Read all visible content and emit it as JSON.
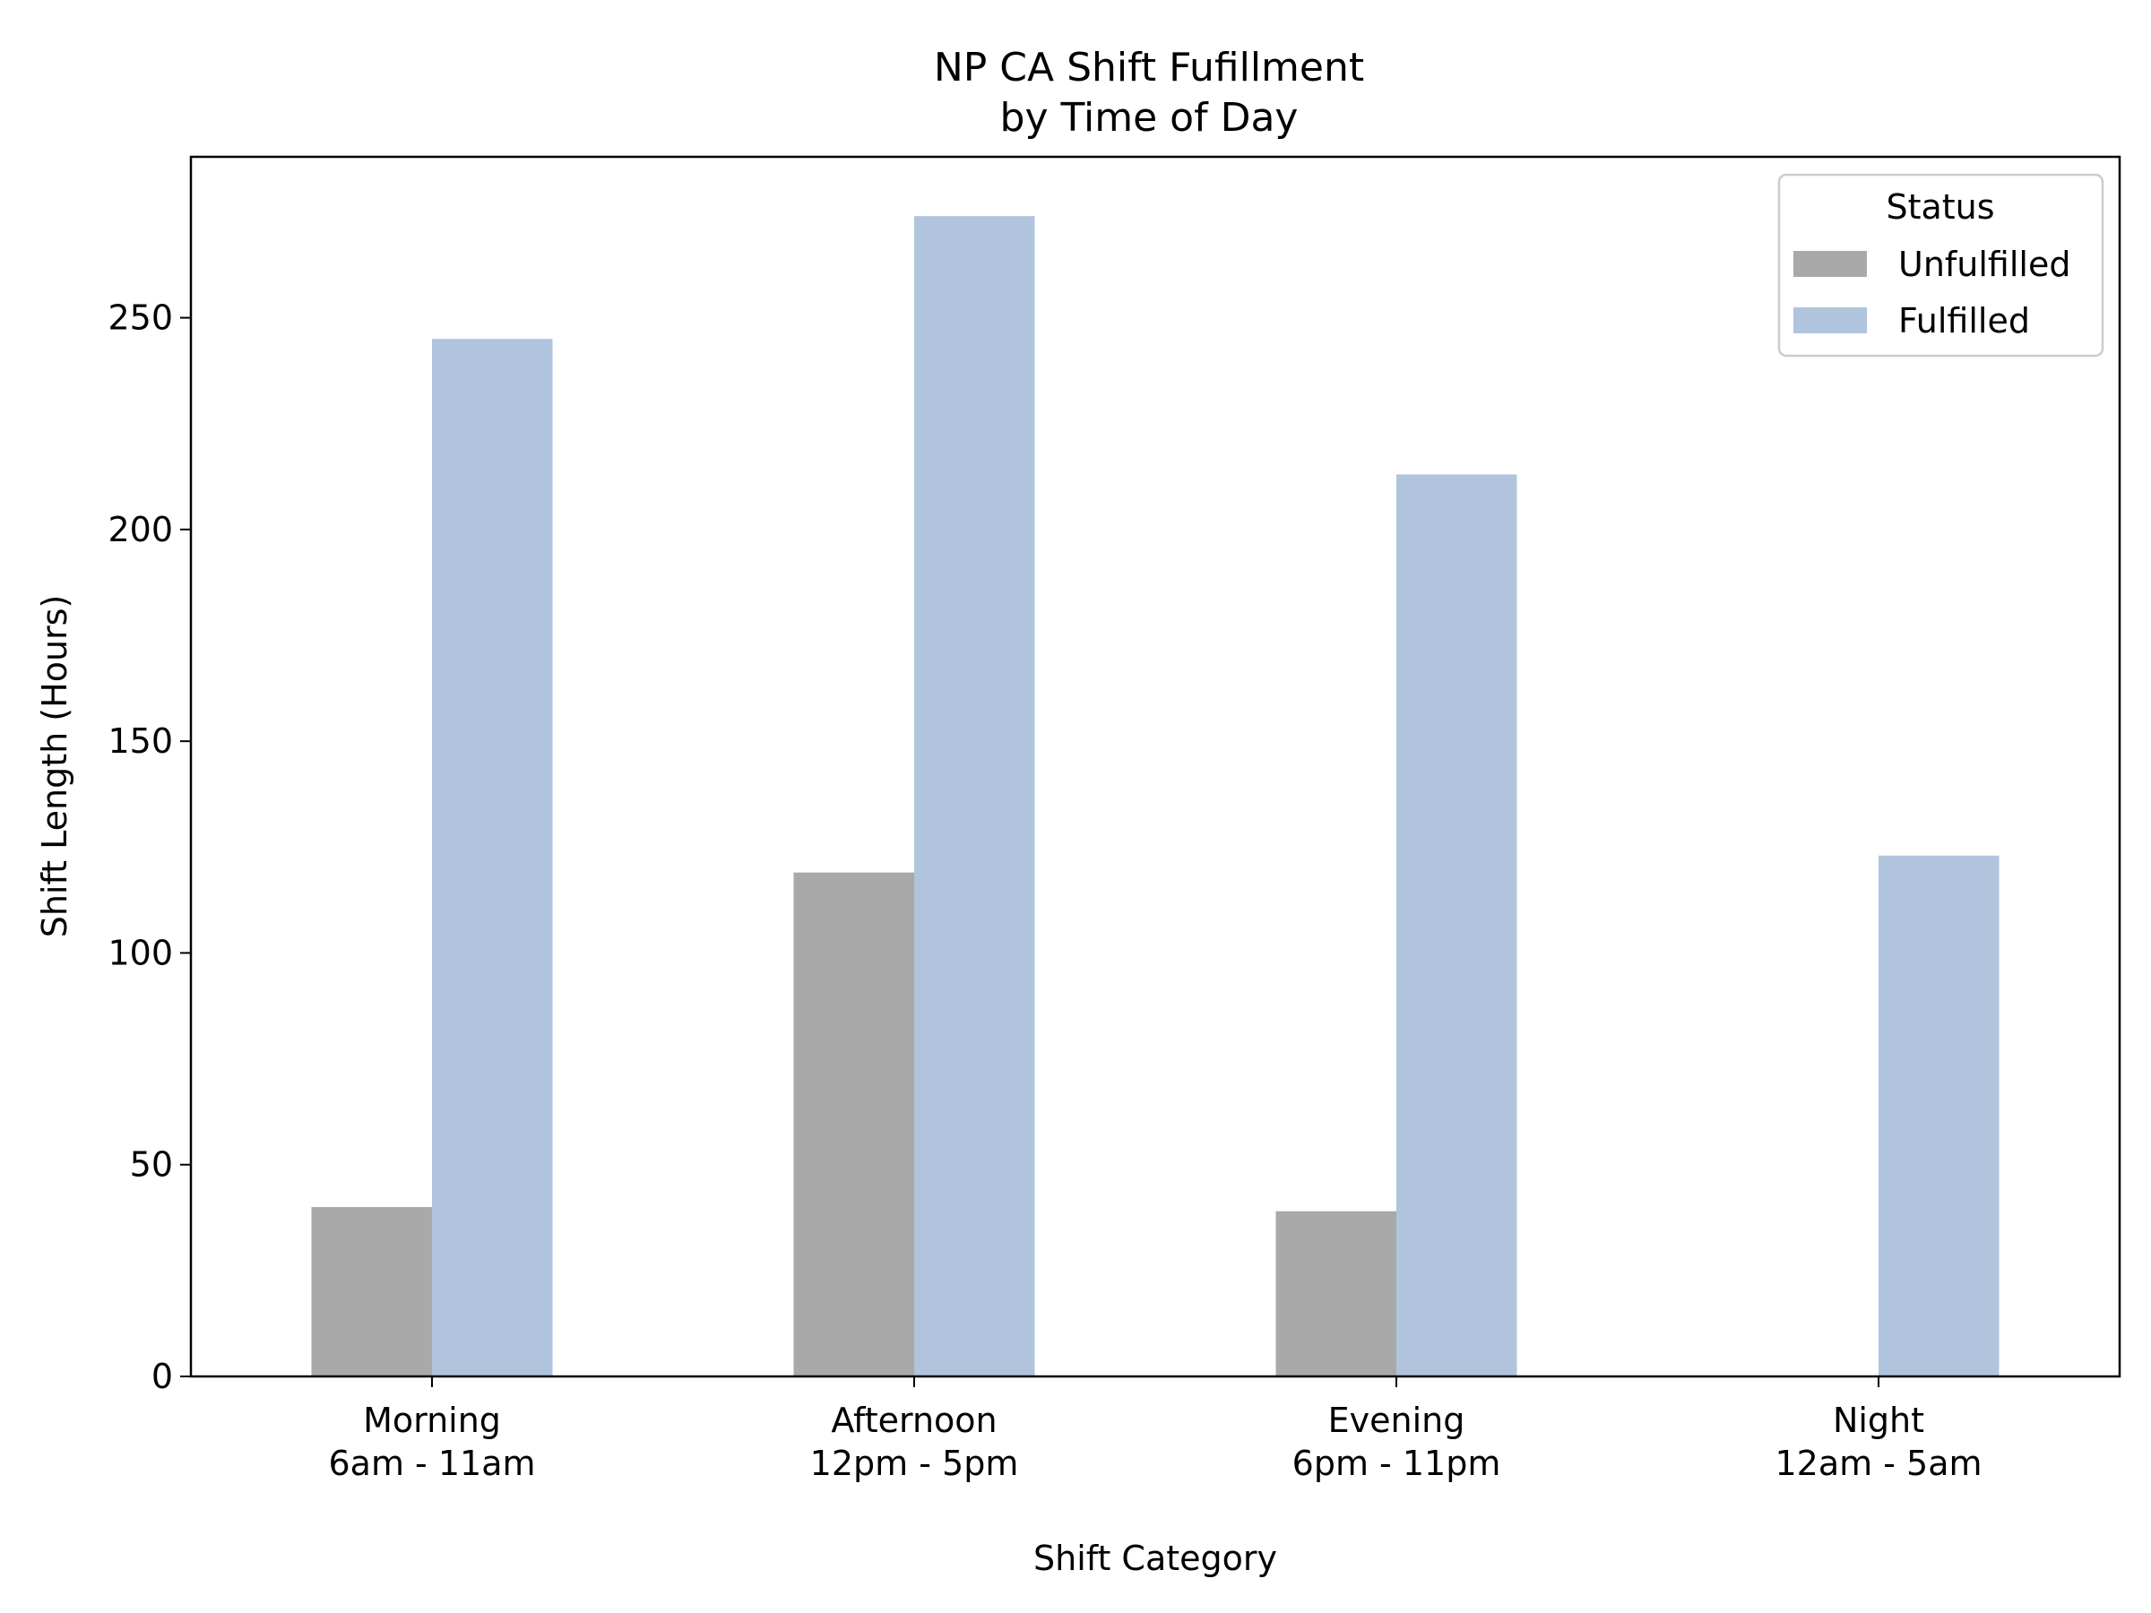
{
  "chart_data": {
    "type": "bar",
    "title_lines": [
      "NP CA Shift Fufillment",
      "by Time of Day"
    ],
    "xlabel": "Shift Category",
    "ylabel": "Shift Length (Hours)",
    "categories": [
      [
        "Morning",
        "6am - 11am"
      ],
      [
        "Afternoon",
        "12pm - 5pm"
      ],
      [
        "Evening",
        "6pm - 11pm"
      ],
      [
        "Night",
        "12am - 5am"
      ]
    ],
    "series": [
      {
        "name": "Unfulfilled",
        "color": "#a9a9a9",
        "values": [
          40,
          119,
          39,
          0
        ]
      },
      {
        "name": "Fulfilled",
        "color": "#b0c4de",
        "values": [
          245,
          274,
          213,
          123
        ]
      }
    ],
    "ylim": [
      0,
      288
    ],
    "yticks": [
      0,
      50,
      100,
      150,
      200,
      250
    ],
    "legend": {
      "title": "Status",
      "position": "top-right"
    },
    "grid": false
  }
}
